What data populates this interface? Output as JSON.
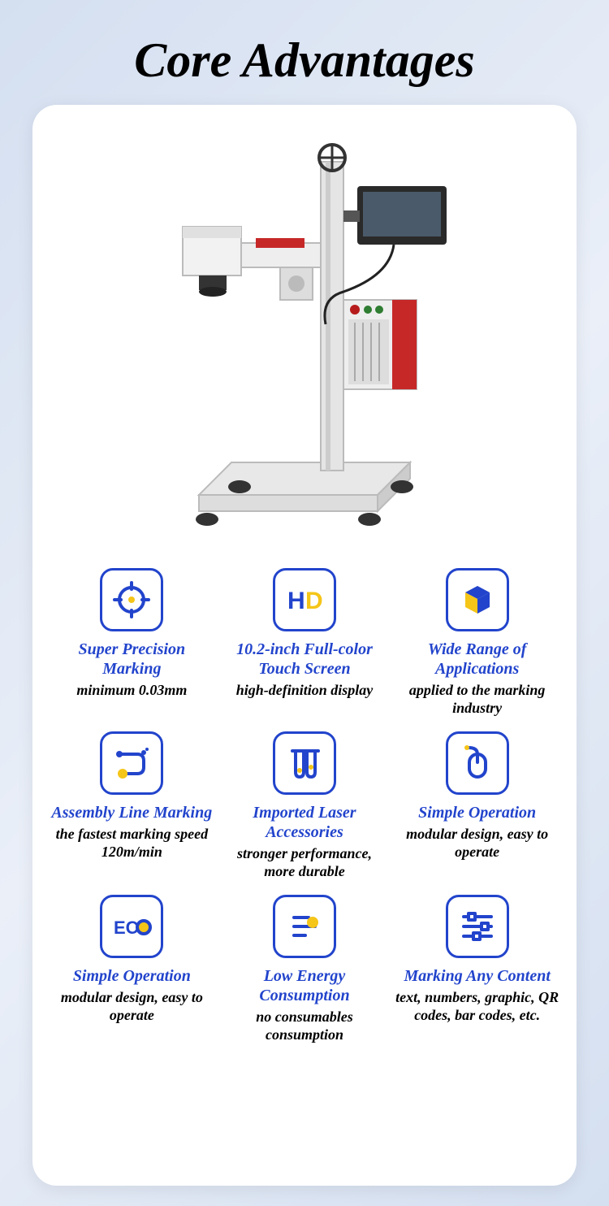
{
  "title": "Core Advantages",
  "colors": {
    "icon_border": "#2244cc",
    "title_text": "#2244cc",
    "accent_yellow": "#f5c518",
    "desc_text": "#000000"
  },
  "features": [
    {
      "icon": "target",
      "title": "Super Precision Marking",
      "desc": "minimum 0.03mm"
    },
    {
      "icon": "hd",
      "title": "10.2-inch Full-color Touch Screen",
      "desc": "high-definition display"
    },
    {
      "icon": "cube",
      "title": "Wide Range of Applications",
      "desc": "applied to the marking industry"
    },
    {
      "icon": "route",
      "title": "Assembly Line Marking",
      "desc": "the fastest marking speed 120m/min"
    },
    {
      "icon": "tubes",
      "title": "Imported Laser Accessories",
      "desc": "stronger performance, more durable"
    },
    {
      "icon": "mouse",
      "title": "Simple Operation",
      "desc": "modular design, easy to operate"
    },
    {
      "icon": "eco",
      "title": "Simple Operation",
      "desc": "modular design, easy to operate"
    },
    {
      "icon": "energy",
      "title": "Low Energy Consumption",
      "desc": "no consumables consumption"
    },
    {
      "icon": "sliders",
      "title": "Marking Any Content",
      "desc": "text, numbers, graphic, QR codes, bar codes, etc."
    }
  ]
}
